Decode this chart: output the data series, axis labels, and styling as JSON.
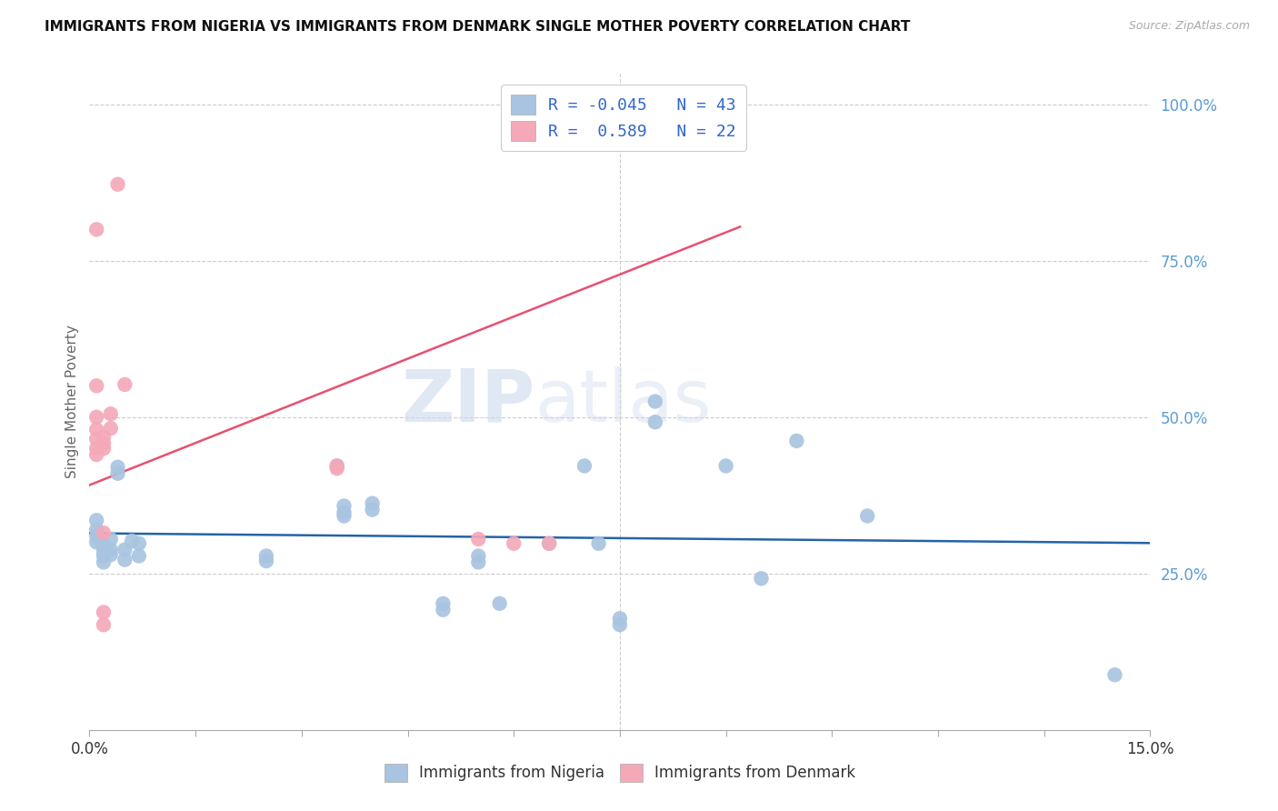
{
  "title": "IMMIGRANTS FROM NIGERIA VS IMMIGRANTS FROM DENMARK SINGLE MOTHER POVERTY CORRELATION CHART",
  "source": "Source: ZipAtlas.com",
  "ylabel": "Single Mother Poverty",
  "ytick_labels": [
    "25.0%",
    "50.0%",
    "75.0%",
    "100.0%"
  ],
  "ytick_values": [
    0.25,
    0.5,
    0.75,
    1.0
  ],
  "xlim": [
    0.0,
    0.15
  ],
  "ylim": [
    0.0,
    1.05
  ],
  "nigeria_color": "#a8c4e0",
  "denmark_color": "#f4a8b8",
  "nigeria_line_color": "#2563a8",
  "denmark_line_color": "#e85070",
  "watermark": "ZIPatlas",
  "nigeria_points": [
    [
      0.001,
      0.335
    ],
    [
      0.001,
      0.32
    ],
    [
      0.001,
      0.31
    ],
    [
      0.001,
      0.3
    ],
    [
      0.002,
      0.295
    ],
    [
      0.002,
      0.285
    ],
    [
      0.002,
      0.278
    ],
    [
      0.002,
      0.268
    ],
    [
      0.003,
      0.305
    ],
    [
      0.003,
      0.288
    ],
    [
      0.003,
      0.28
    ],
    [
      0.004,
      0.42
    ],
    [
      0.004,
      0.41
    ],
    [
      0.005,
      0.288
    ],
    [
      0.005,
      0.272
    ],
    [
      0.006,
      0.302
    ],
    [
      0.007,
      0.298
    ],
    [
      0.007,
      0.278
    ],
    [
      0.025,
      0.278
    ],
    [
      0.025,
      0.27
    ],
    [
      0.035,
      0.422
    ],
    [
      0.036,
      0.358
    ],
    [
      0.036,
      0.348
    ],
    [
      0.036,
      0.342
    ],
    [
      0.04,
      0.362
    ],
    [
      0.04,
      0.352
    ],
    [
      0.05,
      0.202
    ],
    [
      0.05,
      0.192
    ],
    [
      0.055,
      0.278
    ],
    [
      0.055,
      0.268
    ],
    [
      0.058,
      0.202
    ],
    [
      0.065,
      0.298
    ],
    [
      0.07,
      0.422
    ],
    [
      0.072,
      0.298
    ],
    [
      0.075,
      0.178
    ],
    [
      0.075,
      0.168
    ],
    [
      0.08,
      0.525
    ],
    [
      0.08,
      0.492
    ],
    [
      0.09,
      0.422
    ],
    [
      0.095,
      0.242
    ],
    [
      0.1,
      0.462
    ],
    [
      0.11,
      0.342
    ],
    [
      0.145,
      0.088
    ]
  ],
  "denmark_points": [
    [
      0.001,
      0.8
    ],
    [
      0.001,
      0.55
    ],
    [
      0.001,
      0.5
    ],
    [
      0.001,
      0.48
    ],
    [
      0.001,
      0.465
    ],
    [
      0.001,
      0.45
    ],
    [
      0.001,
      0.44
    ],
    [
      0.002,
      0.468
    ],
    [
      0.002,
      0.458
    ],
    [
      0.002,
      0.45
    ],
    [
      0.002,
      0.315
    ],
    [
      0.002,
      0.188
    ],
    [
      0.002,
      0.168
    ],
    [
      0.003,
      0.505
    ],
    [
      0.003,
      0.482
    ],
    [
      0.004,
      0.872
    ],
    [
      0.005,
      0.552
    ],
    [
      0.035,
      0.422
    ],
    [
      0.035,
      0.418
    ],
    [
      0.055,
      0.305
    ],
    [
      0.06,
      0.298
    ],
    [
      0.065,
      0.298
    ]
  ],
  "nigeria_R": -0.045,
  "denmark_R": 0.589,
  "nigeria_N": 43,
  "denmark_N": 22
}
